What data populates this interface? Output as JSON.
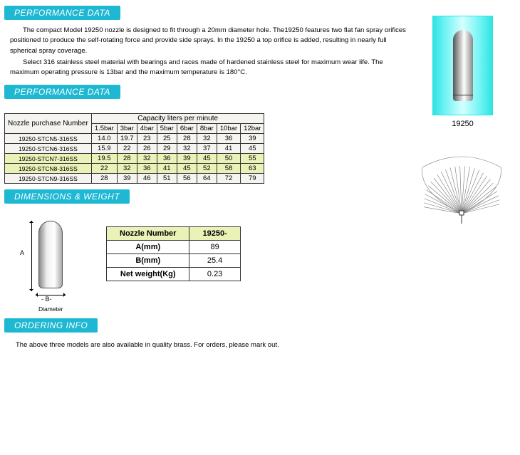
{
  "colors": {
    "header_bg": "#1eb8d3",
    "highlight_bg": "#eaf2b7",
    "cell_bg": "#f5f4f0",
    "border": "#333333"
  },
  "sections": {
    "perf1": "PERFORMANCE DATA",
    "perf2": "PERFORMANCE DATA",
    "dims": "DIMENSIONS & WEIGHT",
    "order": "ORDERING INFO"
  },
  "description": {
    "p1": "The compact Model 19250 nozzle is designed to fit through a 20mm diameter hole. The19250 features two flat fan spray orifices positioned to produce the self-rotating force and provide side sprays. In the 19250 a top orifice is added, resulting in nearly full spherical spray coverage.",
    "p2": "Select 316 stainless steel material with bearings and races made of hardened stainless steel for maximum wear life. The maximum operating pressure is 13bar and the maximum temperature is 180°C."
  },
  "product": {
    "model": "19250"
  },
  "capacity": {
    "row_header": "Nozzle purchase Number",
    "span_header": "Capacity liters per minute",
    "pressures": [
      "1.5bar",
      "3bar",
      "4bar",
      "5bar",
      "6bar",
      "8bar",
      "10bar",
      "12bar"
    ],
    "rows": [
      {
        "num": "19250-STCN5-316SS",
        "vals": [
          "14.0",
          "19.7",
          "23",
          "25",
          "28",
          "32",
          "36",
          "39"
        ],
        "hl": false
      },
      {
        "num": "19250-STCN6-316SS",
        "vals": [
          "15.9",
          "22",
          "26",
          "29",
          "32",
          "37",
          "41",
          "45"
        ],
        "hl": false
      },
      {
        "num": "19250-STCN7-316SS",
        "vals": [
          "19.5",
          "28",
          "32",
          "36",
          "39",
          "45",
          "50",
          "55"
        ],
        "hl": true
      },
      {
        "num": "19250-STCN8-316SS",
        "vals": [
          "22",
          "32",
          "36",
          "41",
          "45",
          "52",
          "58",
          "63"
        ],
        "hl": true
      },
      {
        "num": "19250-STCN9-316SS",
        "vals": [
          "28",
          "39",
          "46",
          "51",
          "56",
          "64",
          "72",
          "79"
        ],
        "hl": false
      }
    ]
  },
  "dimensions": {
    "headers": {
      "left": "Nozzle Number",
      "right": "19250-"
    },
    "rows": [
      {
        "label": "A(mm)",
        "value": "89"
      },
      {
        "label": "B(mm)",
        "value": "25.4"
      },
      {
        "label": "Net weight(Kg)",
        "value": "0.23"
      }
    ],
    "labels": {
      "A": "A",
      "B": "B",
      "diameter": "Diameter"
    }
  },
  "ordering": {
    "note": "The above three models are also available in quality brass. For orders, please mark out."
  }
}
